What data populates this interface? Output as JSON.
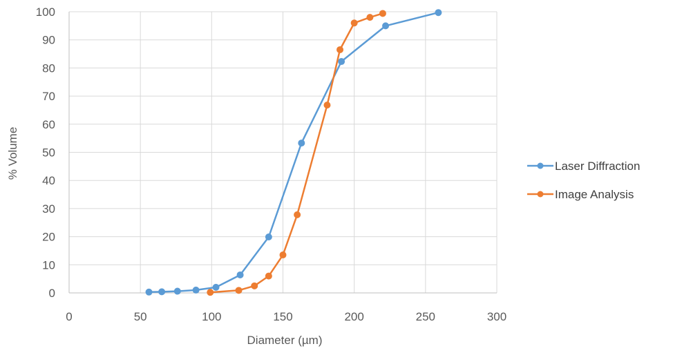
{
  "chart_data": {
    "type": "line",
    "title": "",
    "xlabel": "Diameter (µm)",
    "ylabel": "% Volume",
    "xlim": [
      0,
      300
    ],
    "ylim": [
      0,
      100
    ],
    "x_ticks": [
      "0",
      "50",
      "100",
      "150",
      "200",
      "250",
      "300"
    ],
    "y_ticks": [
      "0",
      "10",
      "20",
      "30",
      "40",
      "50",
      "60",
      "70",
      "80",
      "90",
      "100"
    ],
    "grid": true,
    "legend_position": "right",
    "markers": true,
    "series": [
      {
        "name": "Laser Diffraction",
        "color": "#5b9bd5",
        "points": [
          {
            "x": 56,
            "y": 0.3
          },
          {
            "x": 65,
            "y": 0.4
          },
          {
            "x": 76,
            "y": 0.6
          },
          {
            "x": 89,
            "y": 1.0
          },
          {
            "x": 103,
            "y": 2.0
          },
          {
            "x": 120,
            "y": 6.4
          },
          {
            "x": 140,
            "y": 19.9
          },
          {
            "x": 163,
            "y": 53.3
          },
          {
            "x": 191,
            "y": 82.3
          },
          {
            "x": 222,
            "y": 95.0
          },
          {
            "x": 259,
            "y": 99.7
          }
        ]
      },
      {
        "name": "Image Analysis",
        "color": "#ed7d31",
        "points": [
          {
            "x": 99,
            "y": 0.2
          },
          {
            "x": 119,
            "y": 0.9
          },
          {
            "x": 130,
            "y": 2.5
          },
          {
            "x": 140,
            "y": 6.0
          },
          {
            "x": 150,
            "y": 13.5
          },
          {
            "x": 160,
            "y": 27.8
          },
          {
            "x": 181,
            "y": 66.8
          },
          {
            "x": 190,
            "y": 86.5
          },
          {
            "x": 200,
            "y": 96.0
          },
          {
            "x": 211,
            "y": 98.0
          },
          {
            "x": 220,
            "y": 99.4
          }
        ]
      }
    ]
  }
}
